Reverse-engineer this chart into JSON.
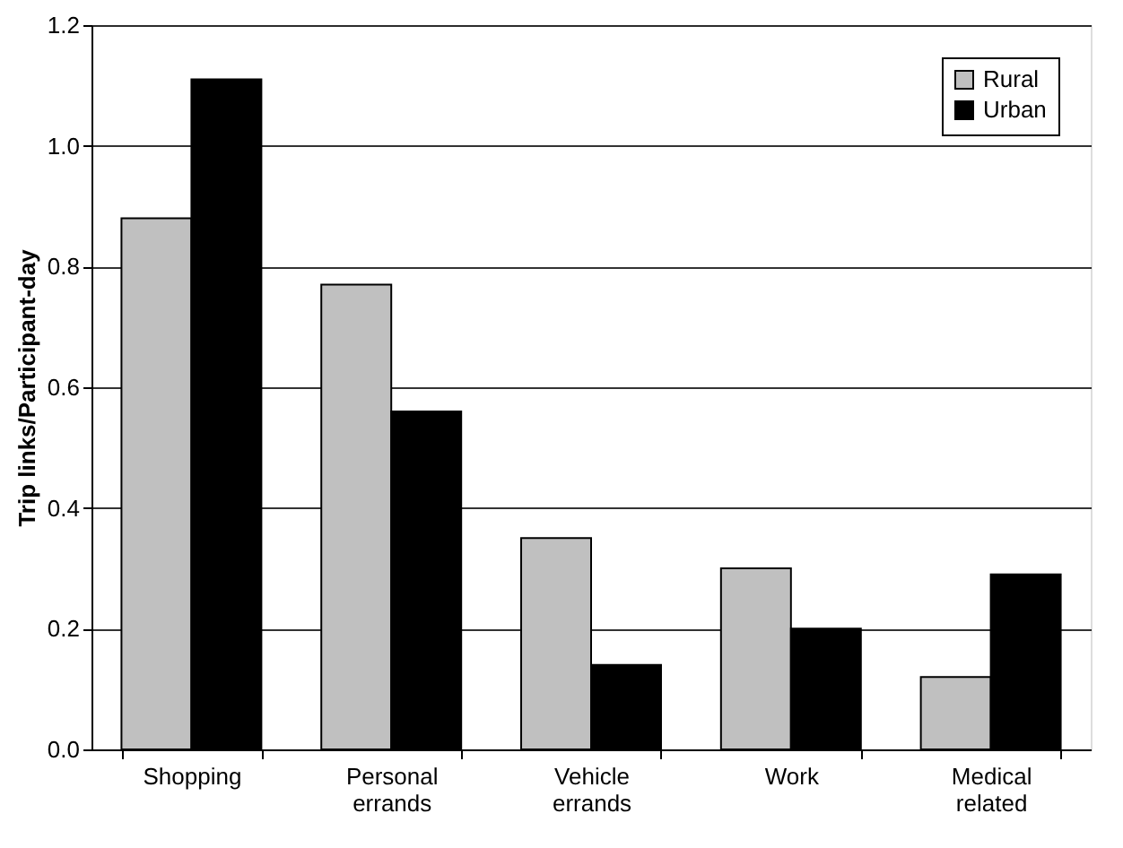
{
  "chart_data": {
    "type": "bar",
    "ylabel": "Trip links/Participant-day",
    "categories": [
      "Shopping",
      "Personal errands",
      "Vehicle errands",
      "Work",
      "Medical related"
    ],
    "series": [
      {
        "name": "Rural",
        "color": "#c0c0c0",
        "values": [
          0.88,
          0.77,
          0.35,
          0.3,
          0.12
        ]
      },
      {
        "name": "Urban",
        "color": "#000000",
        "values": [
          1.11,
          0.56,
          0.14,
          0.2,
          0.29
        ]
      }
    ],
    "ylim": [
      0,
      1.2
    ],
    "yticks": [
      {
        "value": 0,
        "label": "0.0"
      },
      {
        "value": 0.2,
        "label": "0.2"
      },
      {
        "value": 0.4,
        "label": "0.4"
      },
      {
        "value": 0.6,
        "label": "0.6"
      },
      {
        "value": 0.8,
        "label": "0.8"
      },
      {
        "value": 1,
        "label": "1.0"
      },
      {
        "value": 1.2,
        "label": "1.2"
      }
    ],
    "grid": "y",
    "legend": "top right"
  }
}
